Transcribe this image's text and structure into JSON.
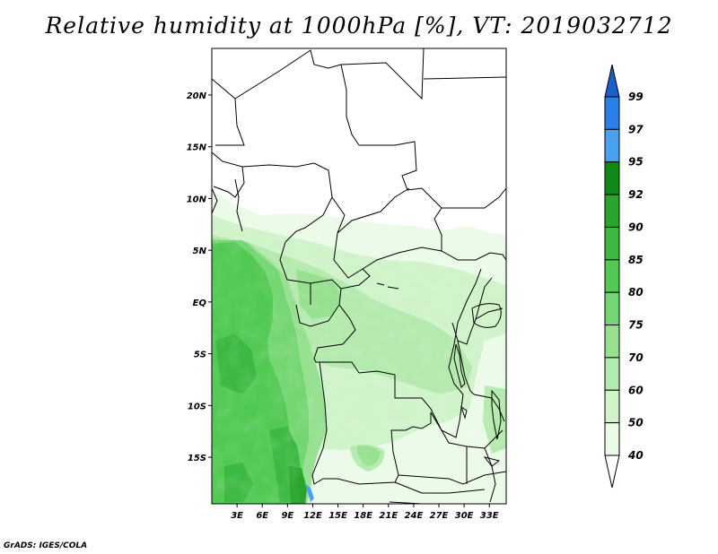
{
  "title": "Relative humidity at 1000hPa [%], VT: 2019032712",
  "footer": "GrADS: IGES/COLA",
  "map": {
    "lat_labels": [
      {
        "lat": 20,
        "text": "20N"
      },
      {
        "lat": 15,
        "text": "15N"
      },
      {
        "lat": 10,
        "text": "10N"
      },
      {
        "lat": 5,
        "text": "5N"
      },
      {
        "lat": 0,
        "text": "EQ"
      },
      {
        "lat": -5,
        "text": "5S"
      },
      {
        "lat": -10,
        "text": "10S"
      },
      {
        "lat": -15,
        "text": "15S"
      }
    ],
    "lon_labels": [
      {
        "lon": 3,
        "text": "3E"
      },
      {
        "lon": 6,
        "text": "6E"
      },
      {
        "lon": 9,
        "text": "9E"
      },
      {
        "lon": 12,
        "text": "12E"
      },
      {
        "lon": 15,
        "text": "15E"
      },
      {
        "lon": 18,
        "text": "18E"
      },
      {
        "lon": 21,
        "text": "21E"
      },
      {
        "lon": 24,
        "text": "24E"
      },
      {
        "lon": 27,
        "text": "27E"
      },
      {
        "lon": 30,
        "text": "30E"
      },
      {
        "lon": 33,
        "text": "33E"
      }
    ],
    "extent": {
      "lon_min": 0,
      "lon_max": 35,
      "lat_min": -19.5,
      "lat_max": 24.5
    }
  },
  "colorbar": {
    "levels": [
      "99",
      "97",
      "95",
      "92",
      "90",
      "85",
      "80",
      "75",
      "70",
      "60",
      "50",
      "40"
    ],
    "colors": [
      "#1b60c8",
      "#2a80e8",
      "#49a2f0",
      "#0f8a14",
      "#29a52d",
      "#3db942",
      "#52c953",
      "#74d672",
      "#96e090",
      "#b4eaad",
      "#d0f3ca",
      "#ebfbe8",
      "#ffffff"
    ]
  }
}
